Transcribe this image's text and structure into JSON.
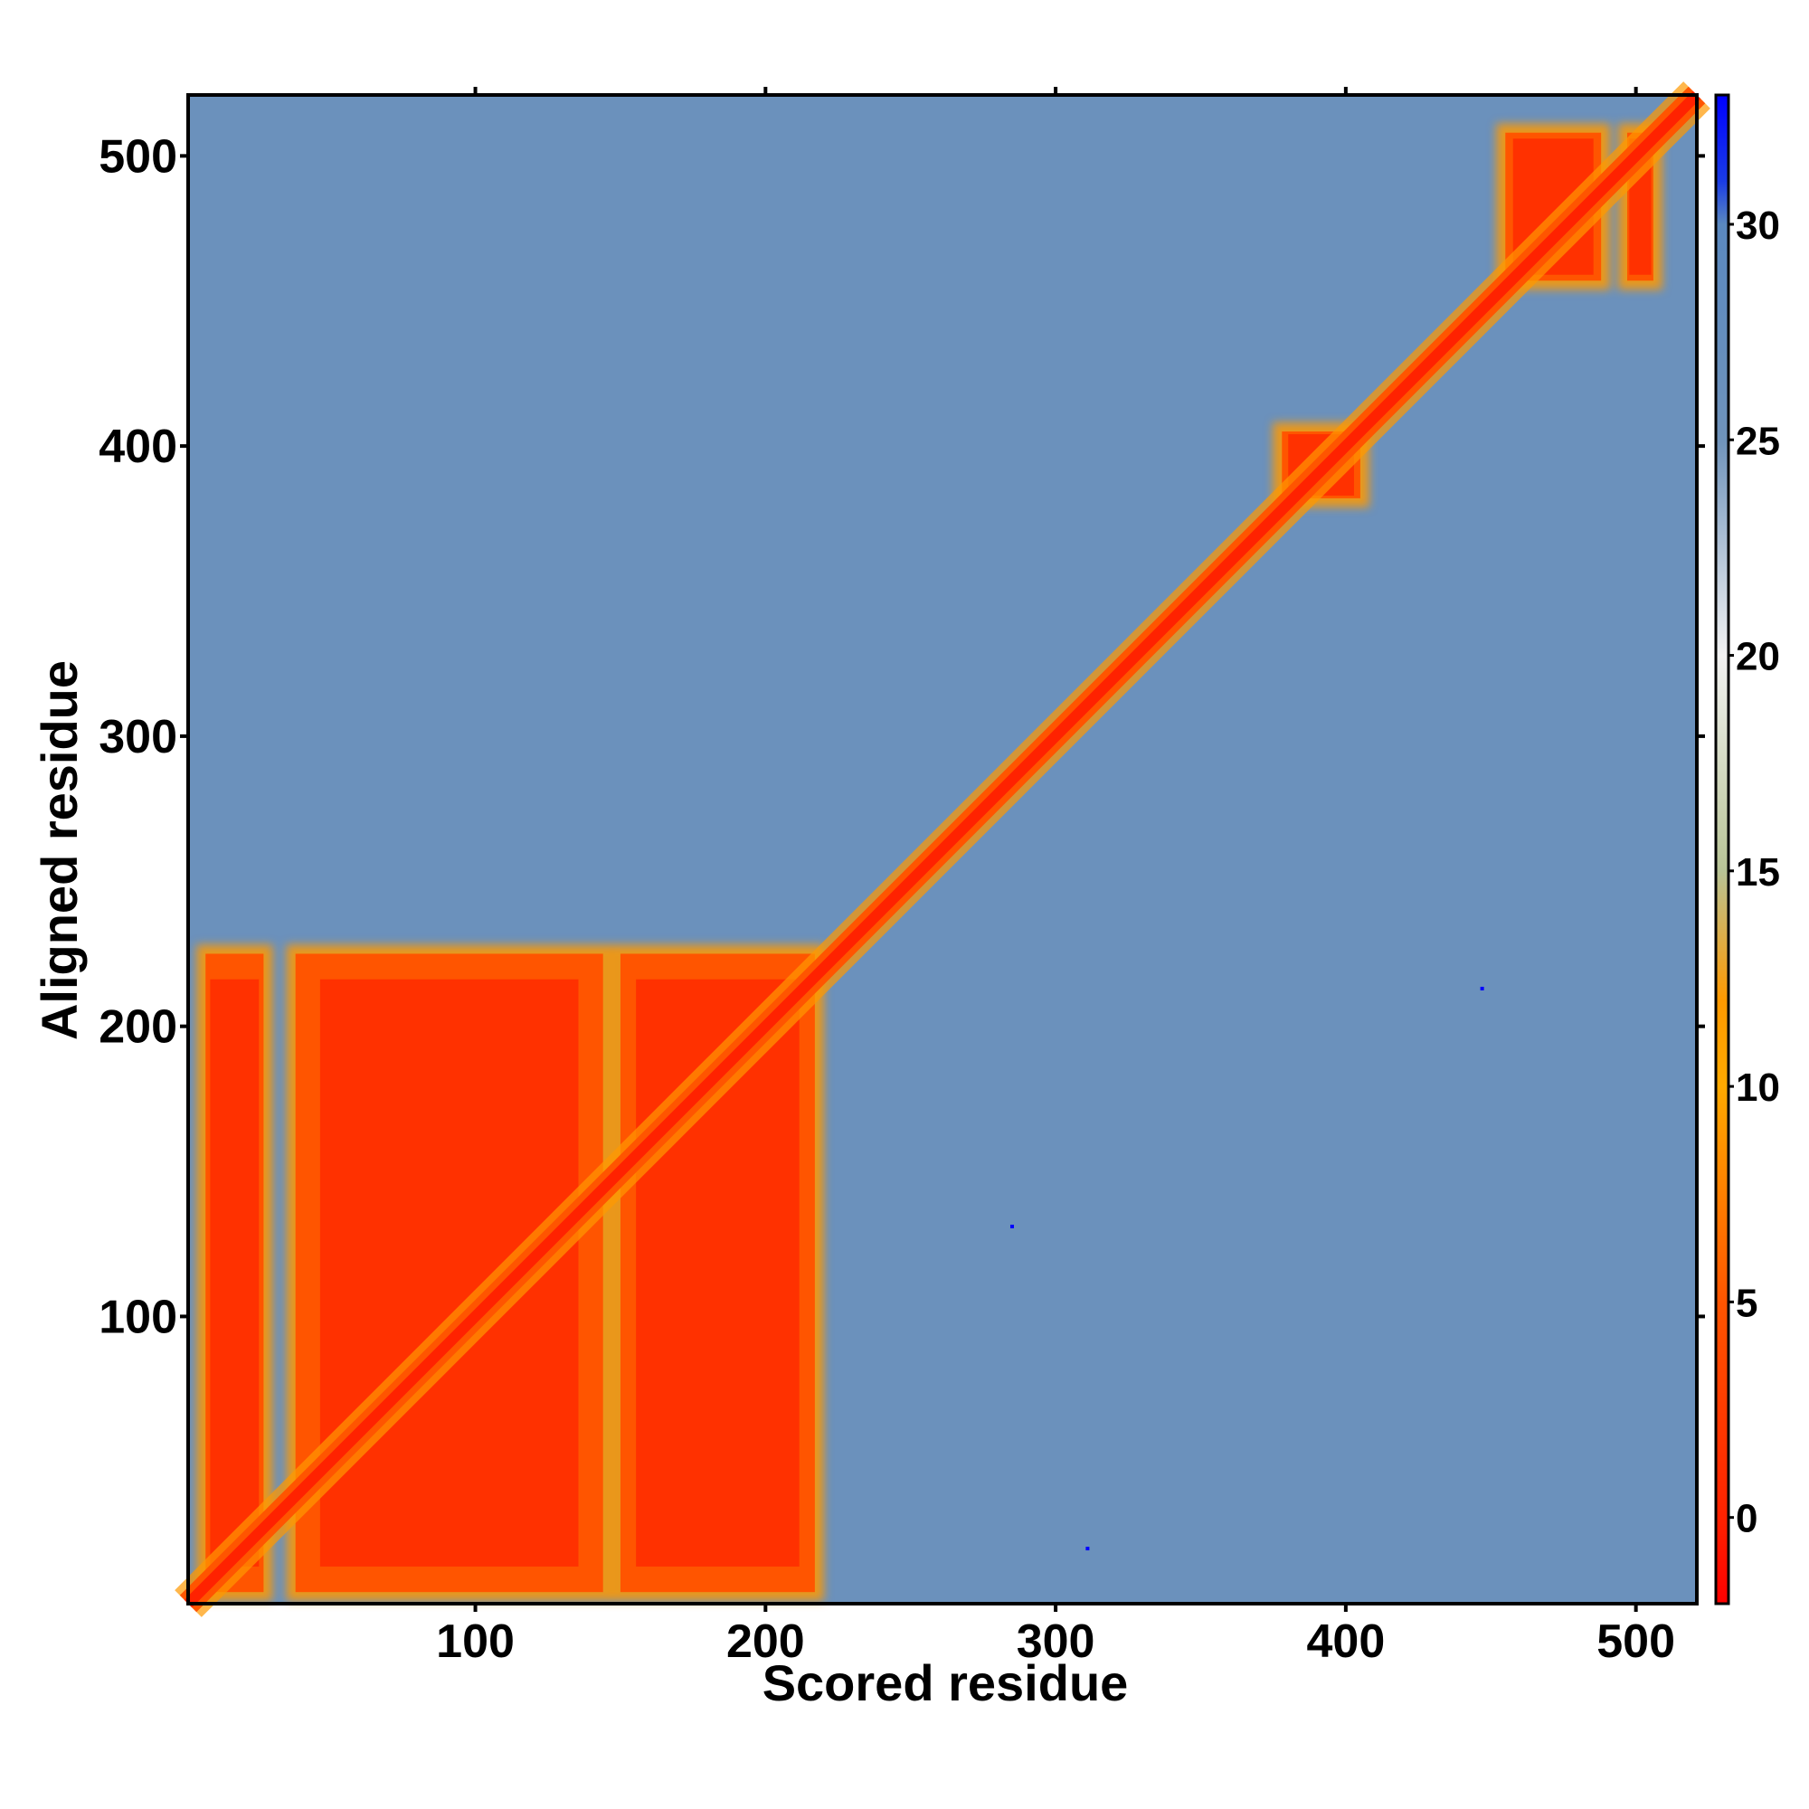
{
  "chart_data": {
    "type": "heatmap",
    "title": "",
    "xlabel": "Scored residue",
    "ylabel": "Aligned residue",
    "xlim": [
      1,
      521
    ],
    "ylim": [
      1,
      521
    ],
    "x_ticks": [
      100,
      200,
      300,
      400,
      500
    ],
    "y_ticks": [
      100,
      200,
      300,
      400,
      500
    ],
    "colorbar": {
      "ticks": [
        0,
        5,
        10,
        15,
        20,
        25,
        30
      ],
      "range": [
        -2,
        33
      ],
      "stops": [
        {
          "value": -2,
          "color": "#ff0000"
        },
        {
          "value": 0,
          "color": "#ff2200"
        },
        {
          "value": 5,
          "color": "#ff5500"
        },
        {
          "value": 10,
          "color": "#ffaa00"
        },
        {
          "value": 12,
          "color": "#ff9900"
        },
        {
          "value": 15,
          "color": "#b8c496"
        },
        {
          "value": 20,
          "color": "#f2f2f2"
        },
        {
          "value": 25,
          "color": "#6f93bb"
        },
        {
          "value": 30,
          "color": "#5a88bf"
        },
        {
          "value": 31,
          "color": "#1a3ce6"
        },
        {
          "value": 33,
          "color": "#0000ff"
        }
      ]
    },
    "background_value": 26,
    "low_error_blocks": [
      {
        "x": [
          7,
          27
        ],
        "y": [
          5,
          225
        ],
        "value": 1
      },
      {
        "x": [
          38,
          144
        ],
        "y": [
          5,
          225
        ],
        "value": 1
      },
      {
        "x": [
          150,
          217
        ],
        "y": [
          5,
          225
        ],
        "value": 1
      },
      {
        "x": [
          378,
          405
        ],
        "y": [
          382,
          405
        ],
        "value": 1
      },
      {
        "x": [
          455,
          488
        ],
        "y": [
          457,
          508
        ],
        "value": 1
      },
      {
        "x": [
          497,
          506
        ],
        "y": [
          457,
          508
        ],
        "value": 1
      }
    ],
    "diagonal": {
      "from": 1,
      "to": 521,
      "value": 0
    },
    "outlier_points": [
      {
        "x": 285,
        "y": 131,
        "value": 33
      },
      {
        "x": 311,
        "y": 20,
        "value": 33
      },
      {
        "x": 447,
        "y": 213,
        "value": 33
      }
    ]
  }
}
